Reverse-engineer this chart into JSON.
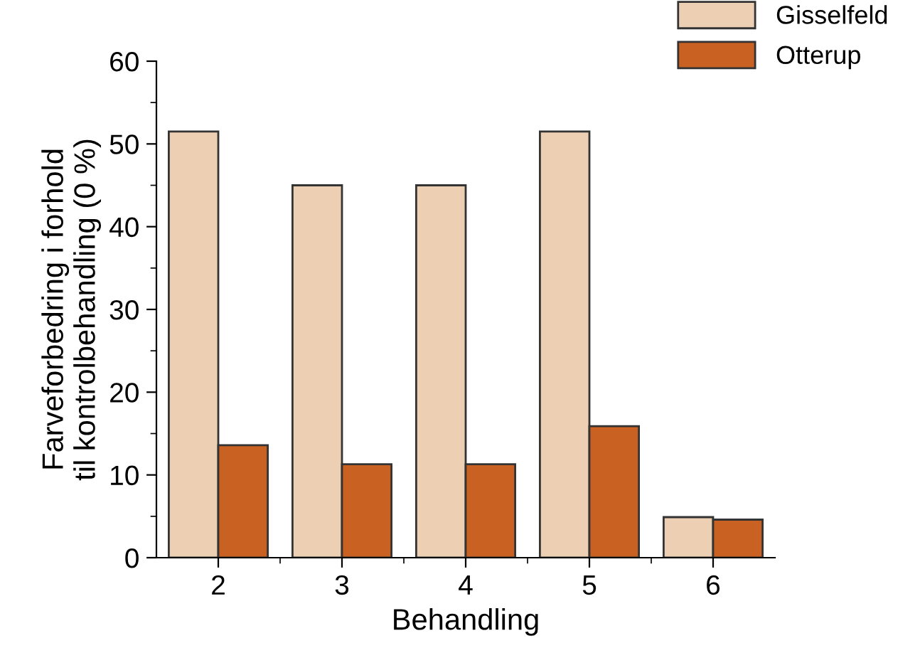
{
  "chart_data": {
    "type": "bar",
    "xlabel": "Behandling",
    "ylabel": "Farveforbedring i forhold\ntil kontrolbehandling (0 %)",
    "categories": [
      "2",
      "3",
      "4",
      "5",
      "6"
    ],
    "series": [
      {
        "name": "Gisselfeld",
        "color": "#edcfb4",
        "values": [
          51.5,
          45.0,
          45.0,
          51.5,
          4.9
        ]
      },
      {
        "name": "Otterup",
        "color": "#c96122",
        "values": [
          13.6,
          11.3,
          11.3,
          15.9,
          4.6
        ]
      }
    ],
    "ylim": [
      0,
      60
    ],
    "yticks": [
      0,
      10,
      20,
      30,
      40,
      50,
      60
    ],
    "grid": false,
    "legend": "top right"
  }
}
